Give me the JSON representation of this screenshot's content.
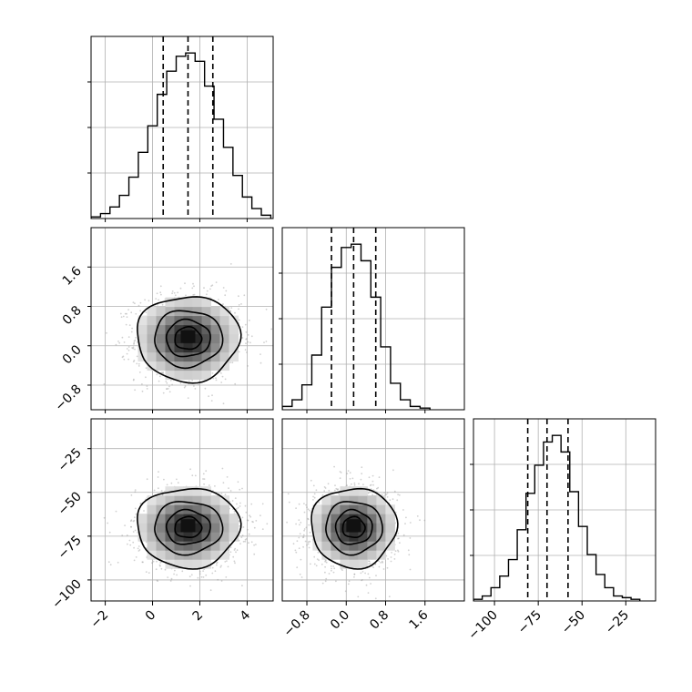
{
  "chart_data": {
    "type": "corner",
    "grid": true,
    "parameters": [
      {
        "name": "param_0",
        "range": [
          -2.6,
          5.1
        ],
        "ticks": [
          -2,
          0,
          2,
          4
        ],
        "tick_labels": [
          "−2",
          "0",
          "2",
          "4"
        ],
        "quantiles": [
          0.45,
          1.5,
          2.55
        ],
        "histogram": {
          "bin_edges": [
            -2.6,
            -2.2,
            -1.8,
            -1.4,
            -1.0,
            -0.6,
            -0.2,
            0.2,
            0.6,
            1.0,
            1.4,
            1.8,
            2.2,
            2.6,
            3.0,
            3.4,
            3.8,
            4.2,
            4.6,
            5.0
          ],
          "counts": [
            1,
            3,
            7,
            14,
            25,
            40,
            56,
            75,
            89,
            98,
            100,
            95,
            80,
            60,
            43,
            26,
            13,
            6,
            2
          ]
        }
      },
      {
        "name": "param_1",
        "range": [
          -1.3,
          2.4
        ],
        "ticks": [
          -0.8,
          0.0,
          0.8,
          1.6
        ],
        "tick_labels": [
          "−0.8",
          "0.0",
          "0.8",
          "1.6"
        ],
        "quantiles": [
          -0.3,
          0.15,
          0.6
        ],
        "histogram": {
          "bin_edges": [
            -1.3,
            -1.1,
            -0.9,
            -0.7,
            -0.5,
            -0.3,
            -0.1,
            0.1,
            0.3,
            0.5,
            0.7,
            0.9,
            1.1,
            1.3,
            1.5,
            1.7
          ],
          "counts": [
            2,
            6,
            15,
            33,
            62,
            86,
            98,
            100,
            90,
            68,
            38,
            16,
            6,
            2,
            1
          ]
        }
      },
      {
        "name": "param_2",
        "range": [
          -112,
          -8
        ],
        "ticks": [
          -100,
          -75,
          -50,
          -25
        ],
        "tick_labels": [
          "−100",
          "−75",
          "−50",
          "−25"
        ],
        "quantiles": [
          -81,
          -70,
          -58
        ],
        "histogram": {
          "bin_edges": [
            -112,
            -107,
            -102,
            -97,
            -92,
            -87,
            -82,
            -77,
            -72,
            -67,
            -62,
            -57,
            -52,
            -47,
            -42,
            -37,
            -32,
            -27,
            -22,
            -17
          ],
          "counts": [
            1,
            3,
            8,
            15,
            25,
            43,
            65,
            82,
            96,
            100,
            90,
            66,
            45,
            28,
            16,
            8,
            3,
            2,
            1
          ]
        }
      }
    ],
    "pairs": [
      {
        "x_param": 0,
        "y_param": 1,
        "mean": [
          1.5,
          0.15
        ],
        "std": [
          1.05,
          0.42
        ],
        "contour_levels": [
          0.118,
          0.393,
          0.675,
          0.865
        ]
      },
      {
        "x_param": 0,
        "y_param": 2,
        "mean": [
          1.5,
          -70
        ],
        "std": [
          1.05,
          11
        ],
        "contour_levels": [
          0.118,
          0.393,
          0.675,
          0.865
        ]
      },
      {
        "x_param": 1,
        "y_param": 2,
        "mean": [
          0.15,
          -70
        ],
        "std": [
          0.42,
          11
        ],
        "contour_levels": [
          0.118,
          0.393,
          0.675,
          0.865
        ]
      }
    ],
    "colors": {
      "line": "#000000",
      "grid": "#b0b0b0",
      "scatter": "#9a9a9a"
    }
  }
}
